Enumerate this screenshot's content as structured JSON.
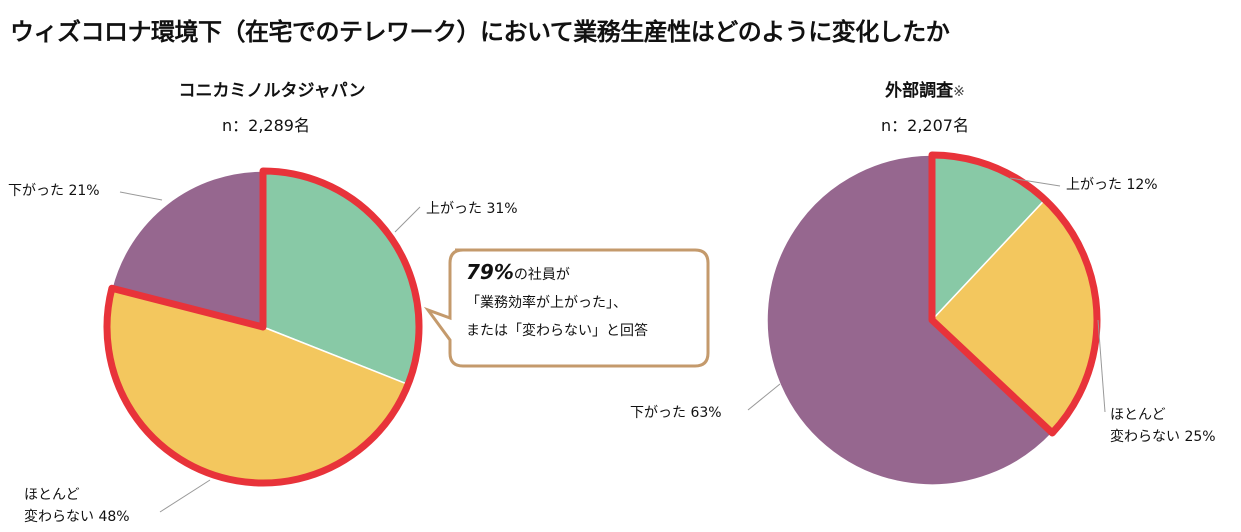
{
  "title": "ウィズコロナ環境下（在宅でのテレワーク）において業務生産性はどのように変化したか",
  "callout": {
    "highlight": "79%",
    "line1_rest": "の社員が",
    "line2": "「業務効率が上がった」、",
    "line3": "または「変わらない」と回答"
  },
  "colors": {
    "up": "#88C9A6",
    "same": "#F3C75E",
    "down": "#96678F",
    "highlight_outline": "#E8333A",
    "callout_border": "#C49A6C"
  },
  "chart_data": [
    {
      "type": "pie",
      "title": "コニカミノルタジャパン",
      "subtitle": "n：2,289名",
      "slices": [
        {
          "label": "上がった",
          "value": 31,
          "display": "上がった 31%"
        },
        {
          "label": "ほとんど変わらない",
          "value": 48,
          "display1": "ほとんど",
          "display2": "変わらない 48%"
        },
        {
          "label": "下がった",
          "value": 21,
          "display": "下がった 21%"
        }
      ],
      "highlighted": [
        "上がった",
        "ほとんど変わらない"
      ]
    },
    {
      "type": "pie",
      "title": "外部調査",
      "title_note": "※",
      "subtitle": "n：2,207名",
      "slices": [
        {
          "label": "上がった",
          "value": 12,
          "display": "上がった 12%"
        },
        {
          "label": "ほとんど変わらない",
          "value": 25,
          "display1": "ほとんど",
          "display2": "変わらない 25%"
        },
        {
          "label": "下がった",
          "value": 63,
          "display": "下がった 63%"
        }
      ],
      "highlighted": [
        "上がった",
        "ほとんど変わらない"
      ]
    }
  ]
}
